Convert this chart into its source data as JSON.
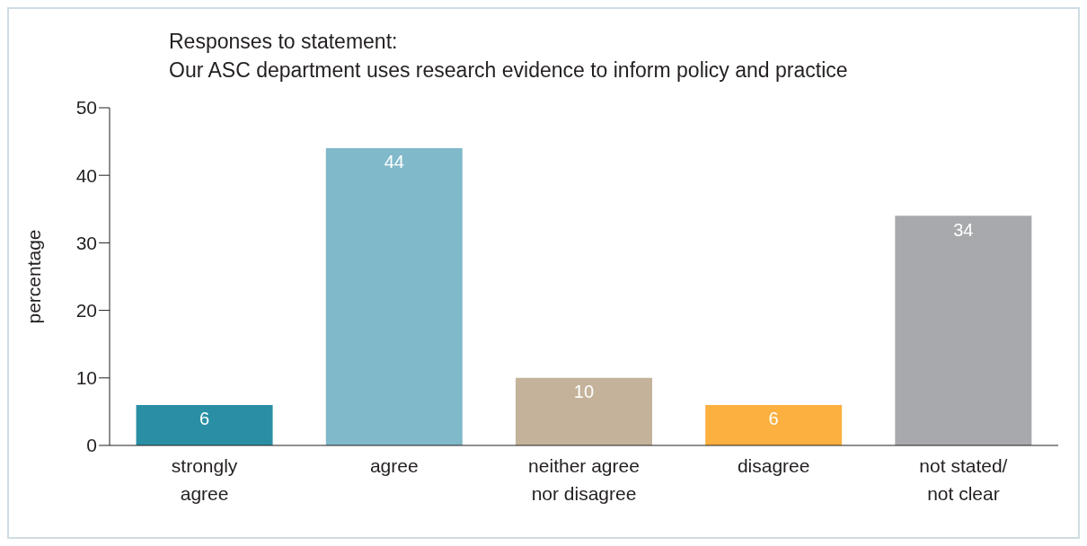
{
  "chart_data": {
    "type": "bar",
    "title": "Responses to statement:",
    "subtitle": "Our ASC department uses research evidence to inform policy and practice",
    "ylabel": "percentage",
    "categories": [
      "strongly agree",
      "agree",
      "neither agree nor disagree",
      "disagree",
      "not stated/ not clear"
    ],
    "values": [
      6,
      44,
      10,
      6,
      34
    ],
    "colors": [
      "#2a8fa5",
      "#80b9c9",
      "#c4b39a",
      "#fbb040",
      "#a8a9ad"
    ],
    "ylim": [
      0,
      50
    ],
    "yticks": [
      0,
      10,
      20,
      30,
      40,
      50
    ],
    "grid": false,
    "legend": false,
    "data_labels": true
  }
}
